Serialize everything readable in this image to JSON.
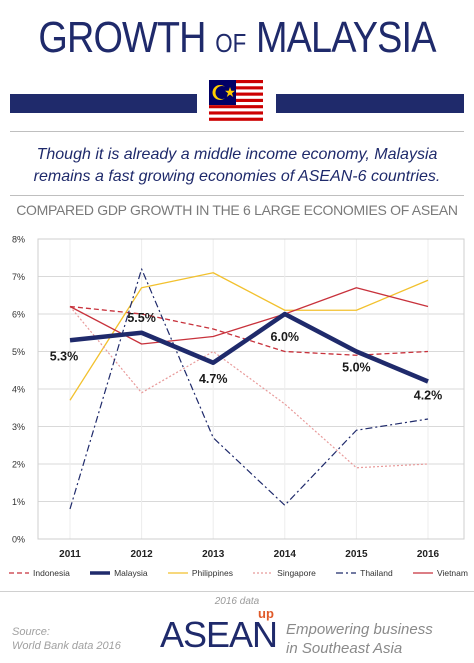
{
  "header": {
    "title_part1": "GROWTH",
    "title_of": "OF",
    "title_part2": "MALAYSIA",
    "subtitle_line1": "Though it is already a middle income economy, Malaysia",
    "subtitle_line2": "remains a fast growing economies of ASEAN-6 countries."
  },
  "colors": {
    "navy": "#1f2a6b",
    "flag_red": "#cc0001",
    "flag_blue": "#010066",
    "flag_yellow": "#ffcc00"
  },
  "footer": {
    "data_year": "2016 data",
    "source_line1": "Source:",
    "source_line2": "World Bank data 2016",
    "brand": "ASEAN",
    "brand_sup": "up",
    "tagline_line1": "Empowering business",
    "tagline_line2": "in Southeast Asia"
  },
  "chart_data": {
    "type": "line",
    "title": "COMPARED GDP GROWTH IN THE 6 LARGE ECONOMIES OF ASEAN",
    "xlabel": "",
    "ylabel": "",
    "x": [
      "2011",
      "2012",
      "2013",
      "2014",
      "2015",
      "2016"
    ],
    "ylim": [
      0,
      8
    ],
    "yticks": [
      "0%",
      "1%",
      "2%",
      "3%",
      "4%",
      "5%",
      "6%",
      "7%",
      "8%"
    ],
    "grid": true,
    "legend_position": "bottom",
    "series": [
      {
        "name": "Indonesia",
        "color": "#c8323c",
        "dash": "5,3",
        "width": 1.3,
        "values": [
          6.2,
          6.0,
          5.6,
          5.0,
          4.9,
          5.0
        ]
      },
      {
        "name": "Malaysia",
        "color": "#1f2a6b",
        "dash": "",
        "width": 4.5,
        "values": [
          5.3,
          5.5,
          4.7,
          6.0,
          5.0,
          4.2
        ],
        "labels": [
          "5.3%",
          "5.5%",
          "4.7%",
          "6.0%",
          "5.0%",
          "4.2%"
        ]
      },
      {
        "name": "Philippines",
        "color": "#f2c12e",
        "dash": "",
        "width": 1.3,
        "values": [
          3.7,
          6.7,
          7.1,
          6.1,
          6.1,
          6.9
        ]
      },
      {
        "name": "Singapore",
        "color": "#e89a9a",
        "dash": "2,2",
        "width": 1.2,
        "values": [
          6.2,
          3.9,
          5.0,
          3.6,
          1.9,
          2.0
        ]
      },
      {
        "name": "Thailand",
        "color": "#1f2a6b",
        "dash": "7,3,2,3",
        "width": 1.2,
        "values": [
          0.8,
          7.2,
          2.7,
          0.9,
          2.9,
          3.2
        ]
      },
      {
        "name": "Vietnam",
        "color": "#c8323c",
        "dash": "",
        "width": 1.3,
        "values": [
          6.2,
          5.2,
          5.4,
          6.0,
          6.7,
          6.2
        ]
      }
    ]
  }
}
